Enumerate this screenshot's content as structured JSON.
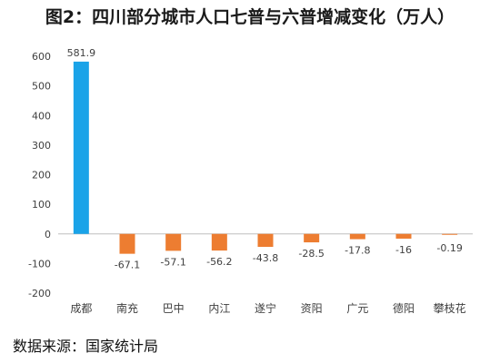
{
  "chart_data": {
    "type": "bar",
    "title": "图2：四川部分城市人口七普与六普增减变化（万人）",
    "categories": [
      "成都",
      "南充",
      "巴中",
      "内江",
      "遂宁",
      "资阳",
      "广元",
      "德阳",
      "攀枝花"
    ],
    "values": [
      581.9,
      -67.1,
      -57.1,
      -56.2,
      -43.8,
      -28.5,
      -17.8,
      -16,
      -0.19
    ],
    "data_labels": [
      "581.9",
      "-67.1",
      "-57.1",
      "-56.2",
      "-43.8",
      "-28.5",
      "-17.8",
      "-16",
      "-0.19"
    ],
    "ylim": [
      -200,
      600
    ],
    "yticks": [
      -200,
      -100,
      0,
      100,
      200,
      300,
      400,
      500,
      600
    ],
    "ytick_labels": [
      "-200",
      "-100",
      "0",
      "100",
      "200",
      "300",
      "400",
      "500",
      "600"
    ],
    "grid": false,
    "legend": false,
    "colors": {
      "positive": "#1aa3e8",
      "negative": "#ed7d31",
      "axis": "#bfbfbf",
      "text": "#404040"
    }
  },
  "source": "数据来源：国家统计局"
}
